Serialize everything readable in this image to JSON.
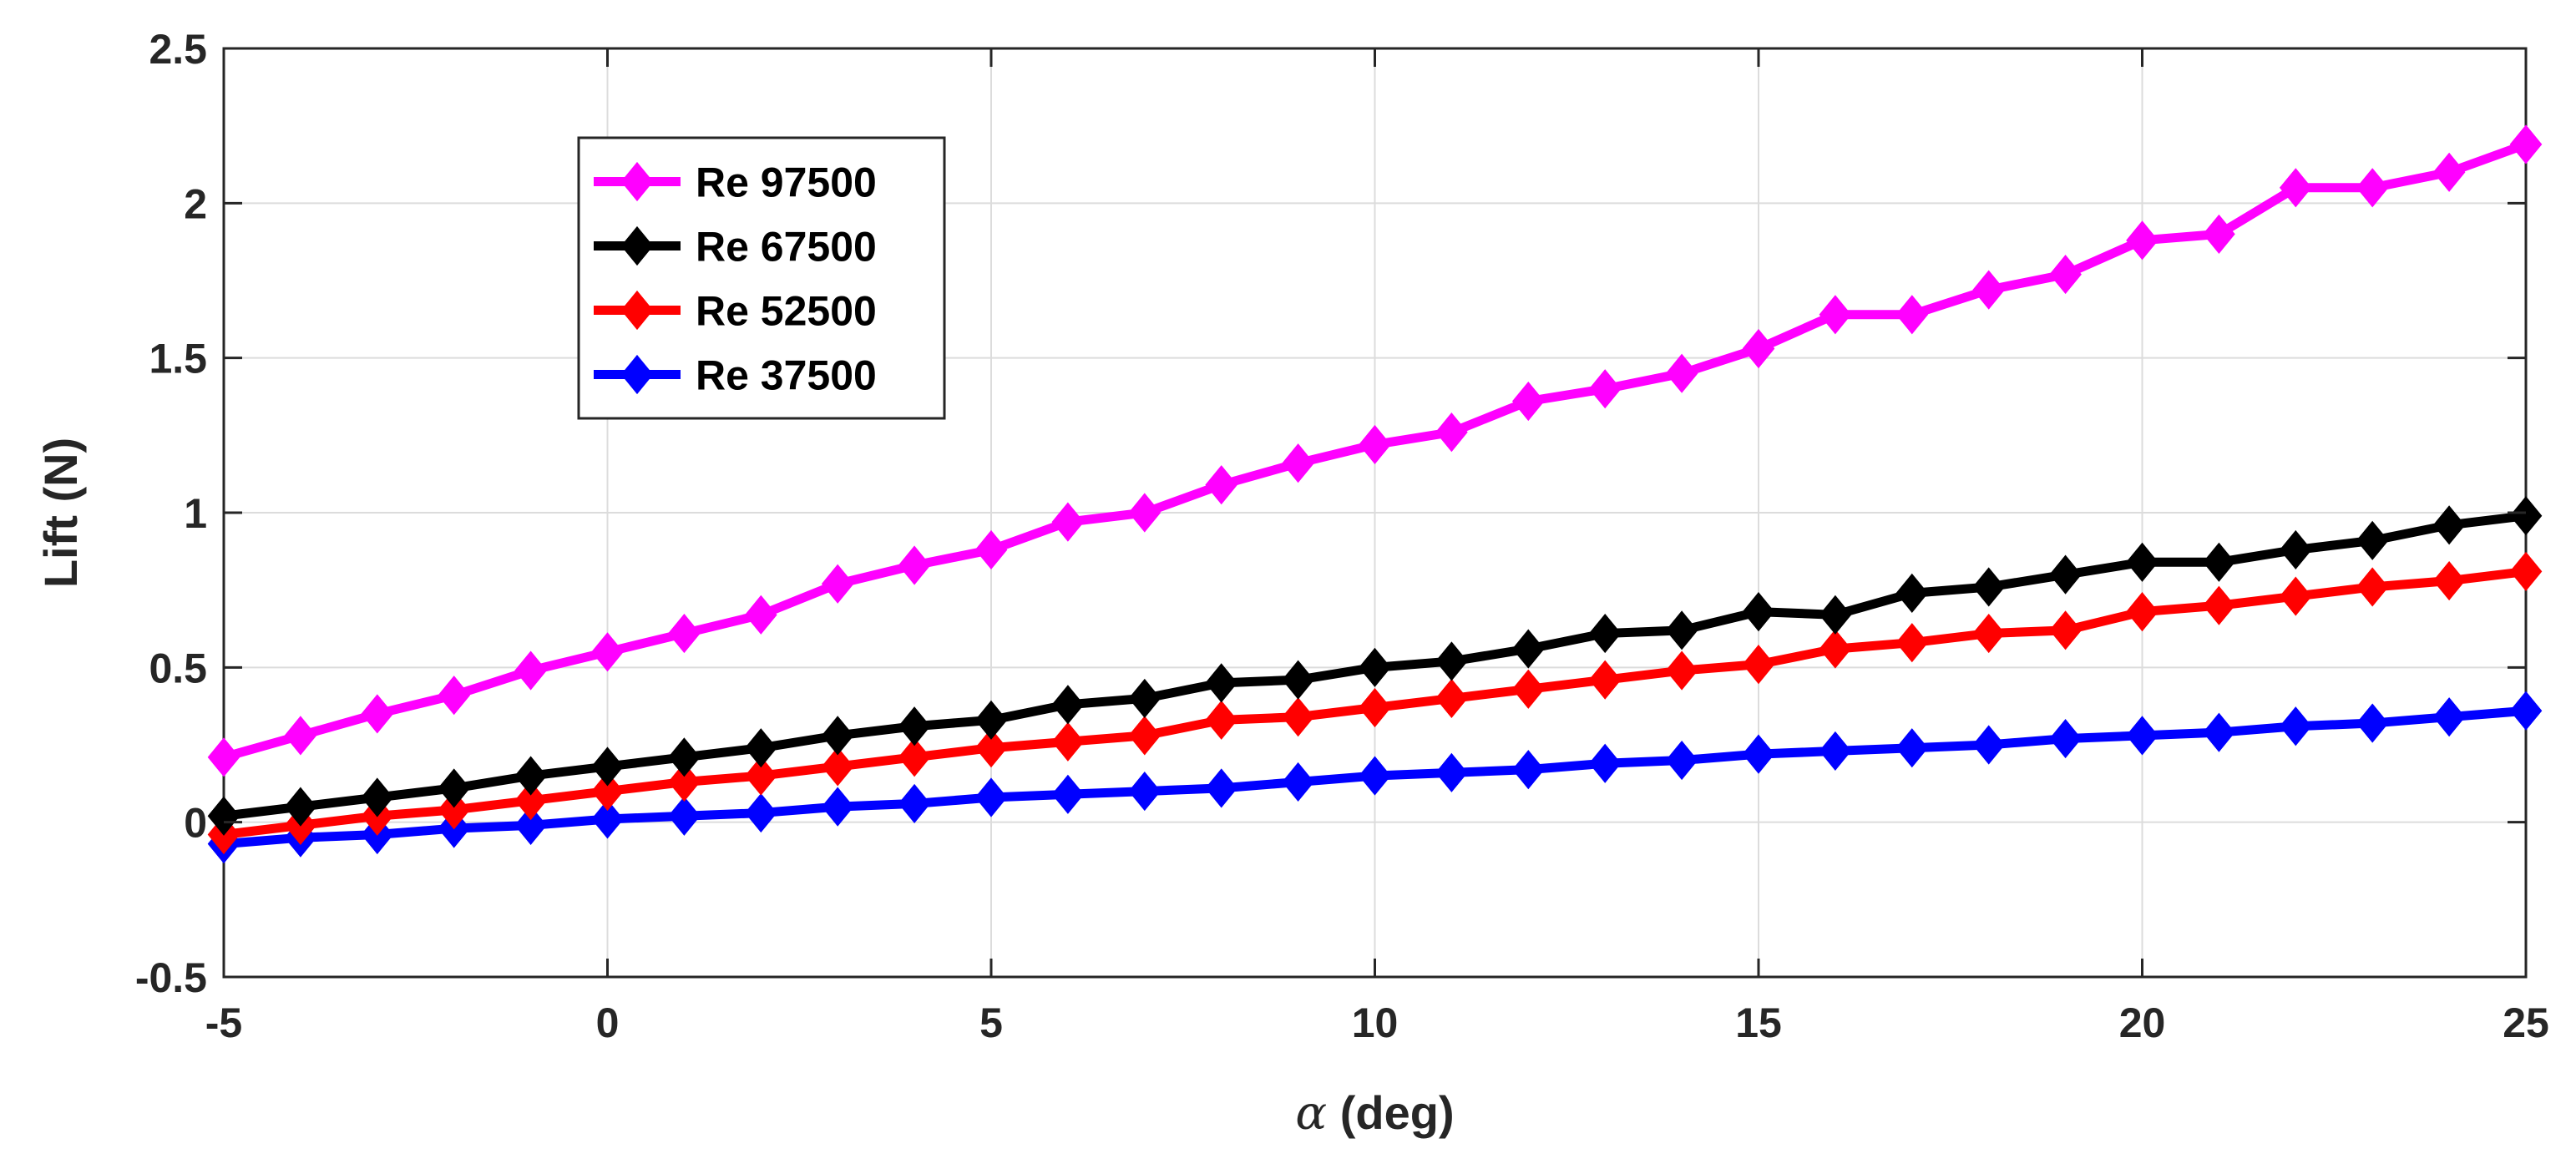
{
  "chart_data": {
    "type": "line",
    "title": "",
    "xlabel_symbol": "α",
    "xlabel_text": " (deg)",
    "ylabel": "Lift (N)",
    "xlim": [
      -5,
      25
    ],
    "ylim": [
      -0.5,
      2.5
    ],
    "xticks": [
      -5,
      0,
      5,
      10,
      15,
      20,
      25
    ],
    "yticks": [
      -0.5,
      0,
      0.5,
      1,
      1.5,
      2,
      2.5
    ],
    "xtick_labels": [
      "-5",
      "0",
      "5",
      "10",
      "15",
      "20",
      "25"
    ],
    "ytick_labels": [
      "-0.5",
      "0",
      "0.5",
      "1",
      "1.5",
      "2",
      "2.5"
    ],
    "grid": true,
    "legend_position": "upper-left",
    "marker": "diamond",
    "x": [
      -5,
      -4,
      -3,
      -2,
      -1,
      0,
      1,
      2,
      3,
      4,
      5,
      6,
      7,
      8,
      9,
      10,
      11,
      12,
      13,
      14,
      15,
      16,
      17,
      18,
      19,
      20,
      21,
      22,
      23,
      24,
      25
    ],
    "series": [
      {
        "name": "Re 97500",
        "color": "#ff00ff",
        "values": [
          0.21,
          0.28,
          0.35,
          0.41,
          0.49,
          0.55,
          0.61,
          0.67,
          0.77,
          0.83,
          0.88,
          0.97,
          1.0,
          1.09,
          1.16,
          1.22,
          1.26,
          1.36,
          1.4,
          1.45,
          1.53,
          1.64,
          1.64,
          1.72,
          1.77,
          1.88,
          1.9,
          2.05,
          2.05,
          2.1,
          2.19
        ]
      },
      {
        "name": "Re 67500",
        "color": "#000000",
        "values": [
          0.02,
          0.05,
          0.08,
          0.11,
          0.15,
          0.18,
          0.21,
          0.24,
          0.28,
          0.31,
          0.33,
          0.38,
          0.4,
          0.45,
          0.46,
          0.5,
          0.52,
          0.56,
          0.61,
          0.62,
          0.68,
          0.67,
          0.74,
          0.76,
          0.8,
          0.84,
          0.84,
          0.88,
          0.91,
          0.96,
          0.99
        ]
      },
      {
        "name": "Re 52500",
        "color": "#ff0000",
        "values": [
          -0.04,
          -0.01,
          0.02,
          0.04,
          0.07,
          0.1,
          0.13,
          0.15,
          0.18,
          0.21,
          0.24,
          0.26,
          0.28,
          0.33,
          0.34,
          0.37,
          0.4,
          0.43,
          0.46,
          0.49,
          0.51,
          0.56,
          0.58,
          0.61,
          0.62,
          0.68,
          0.7,
          0.73,
          0.76,
          0.78,
          0.81
        ]
      },
      {
        "name": "Re 37500",
        "color": "#0000ff",
        "values": [
          -0.07,
          -0.05,
          -0.04,
          -0.02,
          -0.01,
          0.01,
          0.02,
          0.03,
          0.05,
          0.06,
          0.08,
          0.09,
          0.1,
          0.11,
          0.13,
          0.15,
          0.16,
          0.17,
          0.19,
          0.2,
          0.22,
          0.23,
          0.24,
          0.25,
          0.27,
          0.28,
          0.29,
          0.31,
          0.32,
          0.34,
          0.36
        ]
      }
    ]
  }
}
